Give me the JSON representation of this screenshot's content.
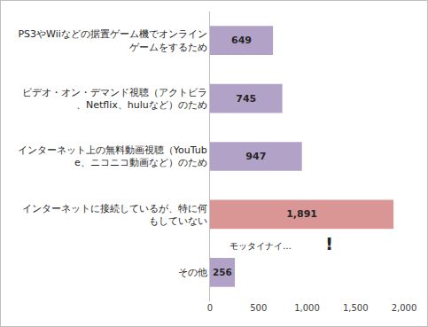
{
  "chart_data": {
    "type": "bar",
    "orientation": "horizontal",
    "categories": [
      "PS3やWiiなどの据置ゲーム機でオンラインゲームをするため",
      "ビデオ・オン・デマンド視聴（アクトビラ、Netflix、huluなど）のため",
      "インターネット上の無料動画視聴（YouTube、ニコニコ動画など）のため",
      "インターネットに接続しているが、特に何もしていない",
      "その他"
    ],
    "values": [
      649,
      745,
      947,
      1891,
      256
    ],
    "value_labels": [
      "649",
      "745",
      "947",
      "1,891",
      "256"
    ],
    "colors": [
      "#b3a2c7",
      "#b3a2c7",
      "#b3a2c7",
      "#d99694",
      "#b3a2c7"
    ],
    "data_labels": true,
    "xlim": [
      0,
      2000
    ],
    "xticks": [
      0,
      500,
      {
        "value": 1000,
        "label": "1,000"
      },
      {
        "value": 1500,
        "label": "1,500"
      },
      {
        "value": 2000,
        "label": "2,000"
      }
    ],
    "grid": false,
    "annotations": [
      "モッタイナイ…",
      "!"
    ]
  }
}
